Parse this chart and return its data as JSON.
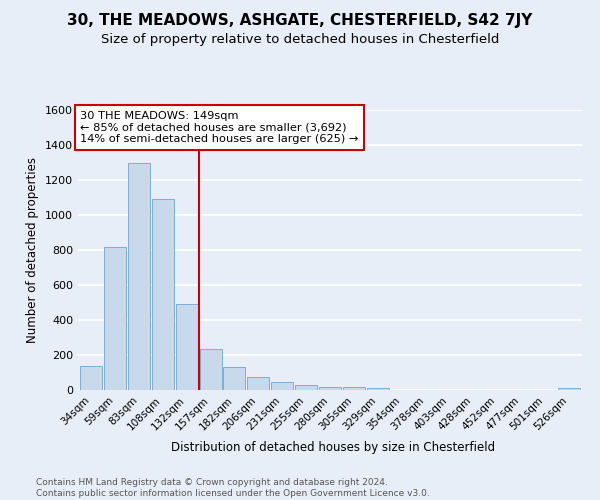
{
  "title": "30, THE MEADOWS, ASHGATE, CHESTERFIELD, S42 7JY",
  "subtitle": "Size of property relative to detached houses in Chesterfield",
  "xlabel": "Distribution of detached houses by size in Chesterfield",
  "ylabel": "Number of detached properties",
  "categories": [
    "34sqm",
    "59sqm",
    "83sqm",
    "108sqm",
    "132sqm",
    "157sqm",
    "182sqm",
    "206sqm",
    "231sqm",
    "255sqm",
    "280sqm",
    "305sqm",
    "329sqm",
    "354sqm",
    "378sqm",
    "403sqm",
    "428sqm",
    "452sqm",
    "477sqm",
    "501sqm",
    "526sqm"
  ],
  "values": [
    140,
    815,
    1295,
    1090,
    490,
    235,
    130,
    75,
    45,
    28,
    20,
    15,
    13,
    0,
    0,
    0,
    0,
    0,
    0,
    0,
    10
  ],
  "bar_color": "#c8d9ec",
  "bar_edge_color": "#7aafd4",
  "vline_color": "#cc0000",
  "vline_x": 4.5,
  "ann_line1": "30 THE MEADOWS: 149sqm",
  "ann_line2": "← 85% of detached houses are smaller (3,692)",
  "ann_line3": "14% of semi-detached houses are larger (625) →",
  "ann_box_facecolor": "#ffffff",
  "ann_box_edgecolor": "#cc0000",
  "ylim_max": 1600,
  "yticks": [
    0,
    200,
    400,
    600,
    800,
    1000,
    1200,
    1400,
    1600
  ],
  "bg_color": "#e8eef7",
  "grid_color": "#ffffff",
  "footer_line1": "Contains HM Land Registry data © Crown copyright and database right 2024.",
  "footer_line2": "Contains public sector information licensed under the Open Government Licence v3.0."
}
